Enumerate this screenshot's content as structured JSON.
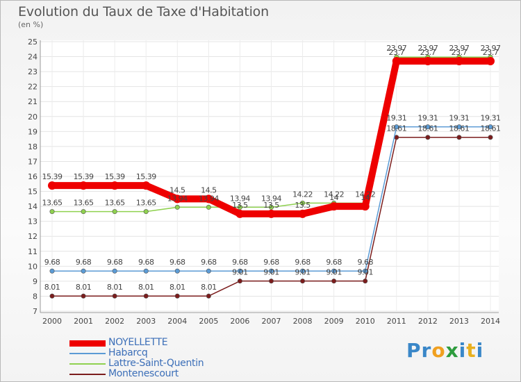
{
  "header": {
    "title": "Evolution du Taux de Taxe d'Habitation",
    "subtitle": "(en %)"
  },
  "logo": {
    "letters": [
      {
        "ch": "P",
        "color": "#3a87c8"
      },
      {
        "ch": "r",
        "color": "#3a87c8"
      },
      {
        "ch": "o",
        "color": "#f0a020"
      },
      {
        "ch": "x",
        "color": "#2e9c3e"
      },
      {
        "ch": "i",
        "color": "#3a87c8"
      },
      {
        "ch": "t",
        "color": "#e8b020"
      },
      {
        "ch": "i",
        "color": "#3a87c8"
      }
    ]
  },
  "chart_data": {
    "type": "line",
    "title": "Evolution du Taux de Taxe d'Habitation",
    "ylabel": "(en %)",
    "xlabel": "",
    "x": [
      "2000",
      "2001",
      "2002",
      "2003",
      "2004",
      "2005",
      "2006",
      "2007",
      "2008",
      "2009",
      "2010",
      "2011",
      "2012",
      "2013",
      "2014"
    ],
    "ylim": [
      7,
      25
    ],
    "yticks": [
      "7",
      "8",
      "9",
      "10",
      "11",
      "12",
      "13",
      "14",
      "15",
      "16",
      "17",
      "18",
      "19",
      "20",
      "21",
      "22",
      "23",
      "24",
      "25"
    ],
    "grid": true,
    "legend_position": "bottom-left",
    "series": [
      {
        "name": "NOYELLETTE",
        "color": "#ee0000",
        "values": [
          15.39,
          15.39,
          15.39,
          15.39,
          14.5,
          14.5,
          13.5,
          13.5,
          13.5,
          14,
          14,
          23.7,
          23.7,
          23.7,
          23.7
        ],
        "labels": [
          "15.39",
          "15.39",
          "15.39",
          "15.39",
          "14.5",
          "14.5",
          "13.5",
          "13.5",
          "13.5",
          "14",
          "14",
          "23.7",
          "23.7",
          "23.7",
          "23.7"
        ]
      },
      {
        "name": "Habarcq",
        "color": "#5b9bd5",
        "values": [
          9.68,
          9.68,
          9.68,
          9.68,
          9.68,
          9.68,
          9.68,
          9.68,
          9.68,
          9.68,
          9.68,
          19.31,
          19.31,
          19.31,
          19.31
        ],
        "labels": [
          "9.68",
          "9.68",
          "9.68",
          "9.68",
          "9.68",
          "9.68",
          "9.68",
          "9.68",
          "9.68",
          "9.68",
          "9.68",
          "19.31",
          "19.31",
          "19.31",
          "19.31"
        ]
      },
      {
        "name": "Lattre-Saint-Quentin",
        "color": "#8fd14f",
        "values": [
          13.65,
          13.65,
          13.65,
          13.65,
          13.94,
          13.94,
          13.94,
          13.94,
          14.22,
          14.22,
          14.22,
          23.97,
          23.97,
          23.97,
          23.97
        ],
        "labels": [
          "13.65",
          "13.65",
          "13.65",
          "13.65",
          "13.94",
          "13.94",
          "13.94",
          "13.94",
          "14.22",
          "14.22",
          "14.22",
          "23.97",
          "23.97",
          "23.97",
          "23.97"
        ]
      },
      {
        "name": "Montenescourt",
        "color": "#7b1c1c",
        "values": [
          8.01,
          8.01,
          8.01,
          8.01,
          8.01,
          8.01,
          9.01,
          9.01,
          9.01,
          9.01,
          9.01,
          18.61,
          18.61,
          18.61,
          18.61
        ],
        "labels": [
          "8.01",
          "8.01",
          "8.01",
          "8.01",
          "8.01",
          "8.01",
          "9.01",
          "9.01",
          "9.01",
          "9.01",
          "9.01",
          "18.61",
          "18.61",
          "18.61",
          "18.61"
        ]
      }
    ]
  }
}
